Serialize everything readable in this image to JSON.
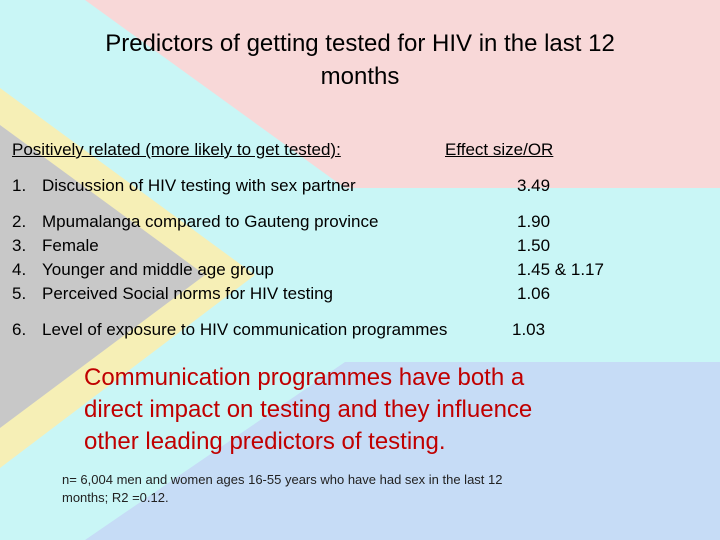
{
  "header": {
    "title": [
      "Predictors of getting tested for HIV in the last 12",
      "months"
    ]
  },
  "table": {
    "columns": [
      "Positively related (more likely to get tested):",
      "Effect size/OR"
    ],
    "rows": [
      [
        "1.",
        "Discussion of HIV testing with sex partner",
        "3.49"
      ],
      [
        "2.",
        "Mpumalanga compared to Gauteng province",
        "1.90"
      ],
      [
        "3.",
        "Female",
        "1.50"
      ],
      [
        "4.",
        "Younger and middle age group",
        "1.45 & 1.17"
      ],
      [
        "5.",
        "Perceived Social norms for HIV testing",
        "1.06"
      ],
      [
        "6.",
        "Level of exposure to HIV communication programmes",
        "1.03"
      ]
    ]
  },
  "callout": [
    "Communication programmes have both a",
    "direct impact on testing and they influence",
    "other leading predictors of testing."
  ],
  "footnote": [
    "n= 6,004  men and women ages 16-55 years who have had sex in the last 12",
    "months; R2 =0.12."
  ]
}
